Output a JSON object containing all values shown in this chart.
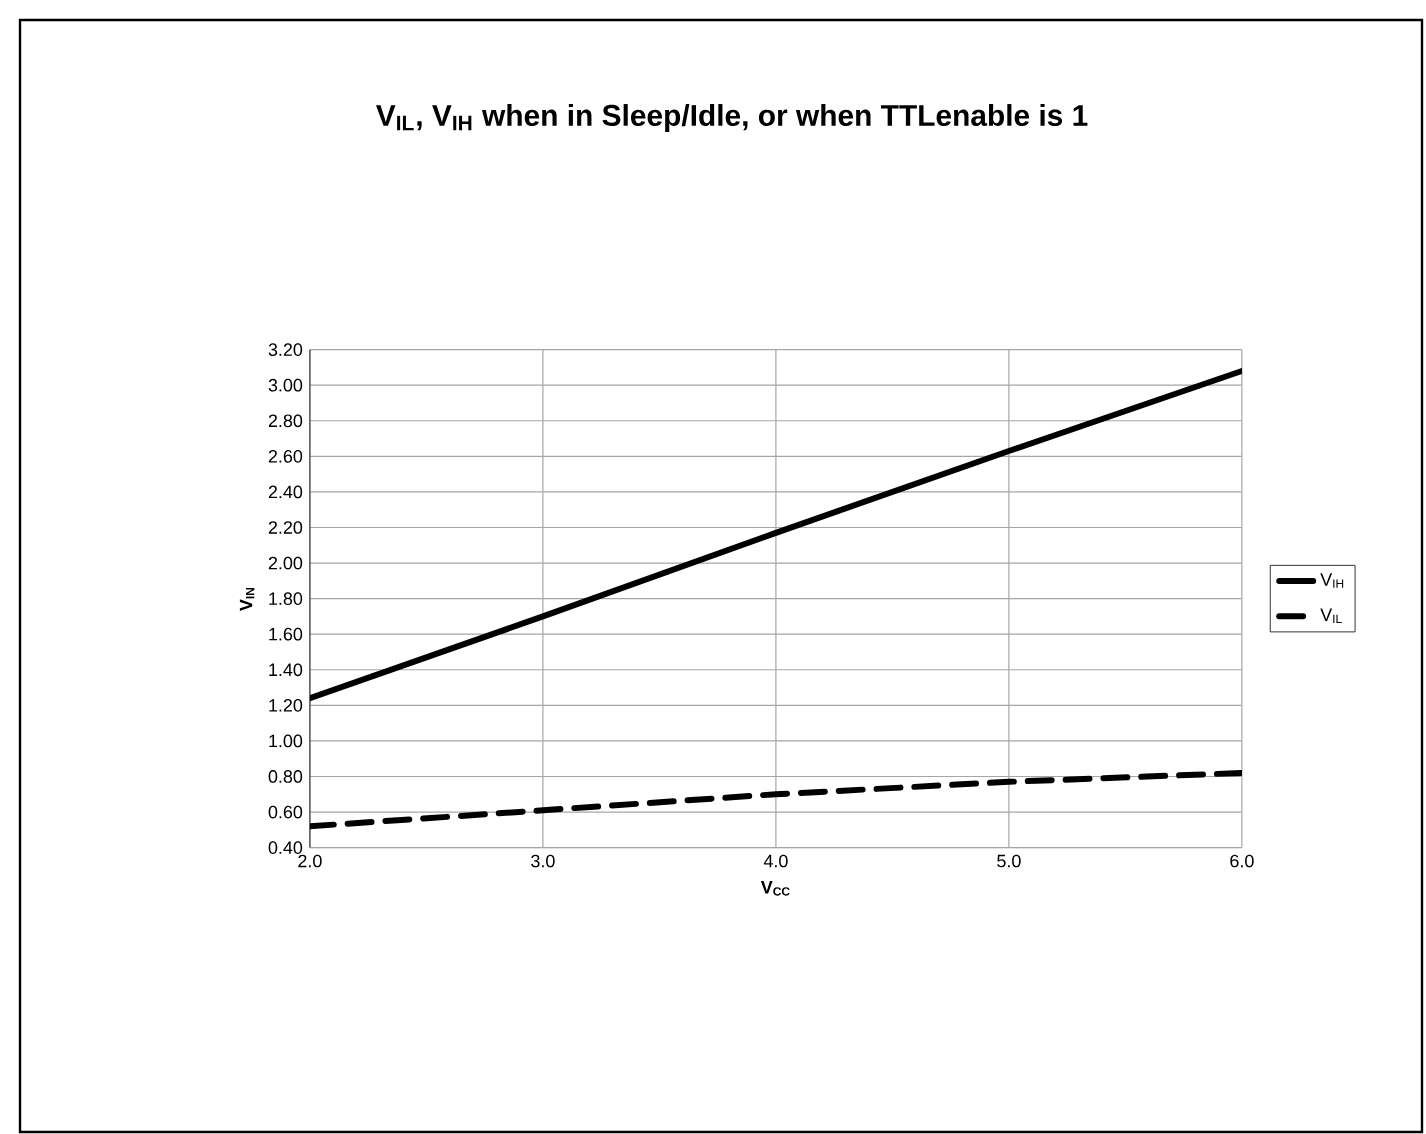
{
  "chart_data": {
    "type": "line",
    "title": "V$_{IL}$, V$_{IH}$ when in Sleep/Idle, or when TTLenable is 1",
    "xlabel": "V$_{CC}$",
    "ylabel": "V$_{IN}$",
    "x": [
      2,
      3,
      4,
      5,
      6
    ],
    "series": [
      {
        "name": "V$_{IH}$",
        "color": "#000000",
        "line_style": "solid",
        "values": [
          1.24,
          1.7,
          2.17,
          2.63,
          3.08
        ]
      },
      {
        "name": "V$_{IL}$",
        "color": "#000000",
        "line_style": "dashed",
        "values": [
          0.52,
          0.61,
          0.7,
          0.77,
          0.82
        ]
      }
    ],
    "xlim": [
      2,
      6
    ],
    "xticks": [
      {
        "value": 2,
        "label": "2.0"
      },
      {
        "value": 3,
        "label": "3.0"
      },
      {
        "value": 4,
        "label": "4.0"
      },
      {
        "value": 5,
        "label": "5.0"
      },
      {
        "value": 6,
        "label": "6.0"
      }
    ],
    "ylim": [
      0.4,
      3.2
    ],
    "yticks": [
      {
        "value": 0.4,
        "label": "0.40"
      },
      {
        "value": 0.6,
        "label": "0.60"
      },
      {
        "value": 0.8,
        "label": "0.80"
      },
      {
        "value": 1.0,
        "label": "1.00"
      },
      {
        "value": 1.2,
        "label": "1.20"
      },
      {
        "value": 1.4,
        "label": "1.40"
      },
      {
        "value": 1.6,
        "label": "1.60"
      },
      {
        "value": 1.8,
        "label": "1.80"
      },
      {
        "value": 2.0,
        "label": "2.00"
      },
      {
        "value": 2.2,
        "label": "2.20"
      },
      {
        "value": 2.4,
        "label": "2.40"
      },
      {
        "value": 2.6,
        "label": "2.60"
      },
      {
        "value": 2.8,
        "label": "2.80"
      },
      {
        "value": 3.0,
        "label": "3.00"
      },
      {
        "value": 3.2,
        "label": "3.20"
      }
    ],
    "grid": true,
    "legend": "right",
    "marker": "none"
  }
}
